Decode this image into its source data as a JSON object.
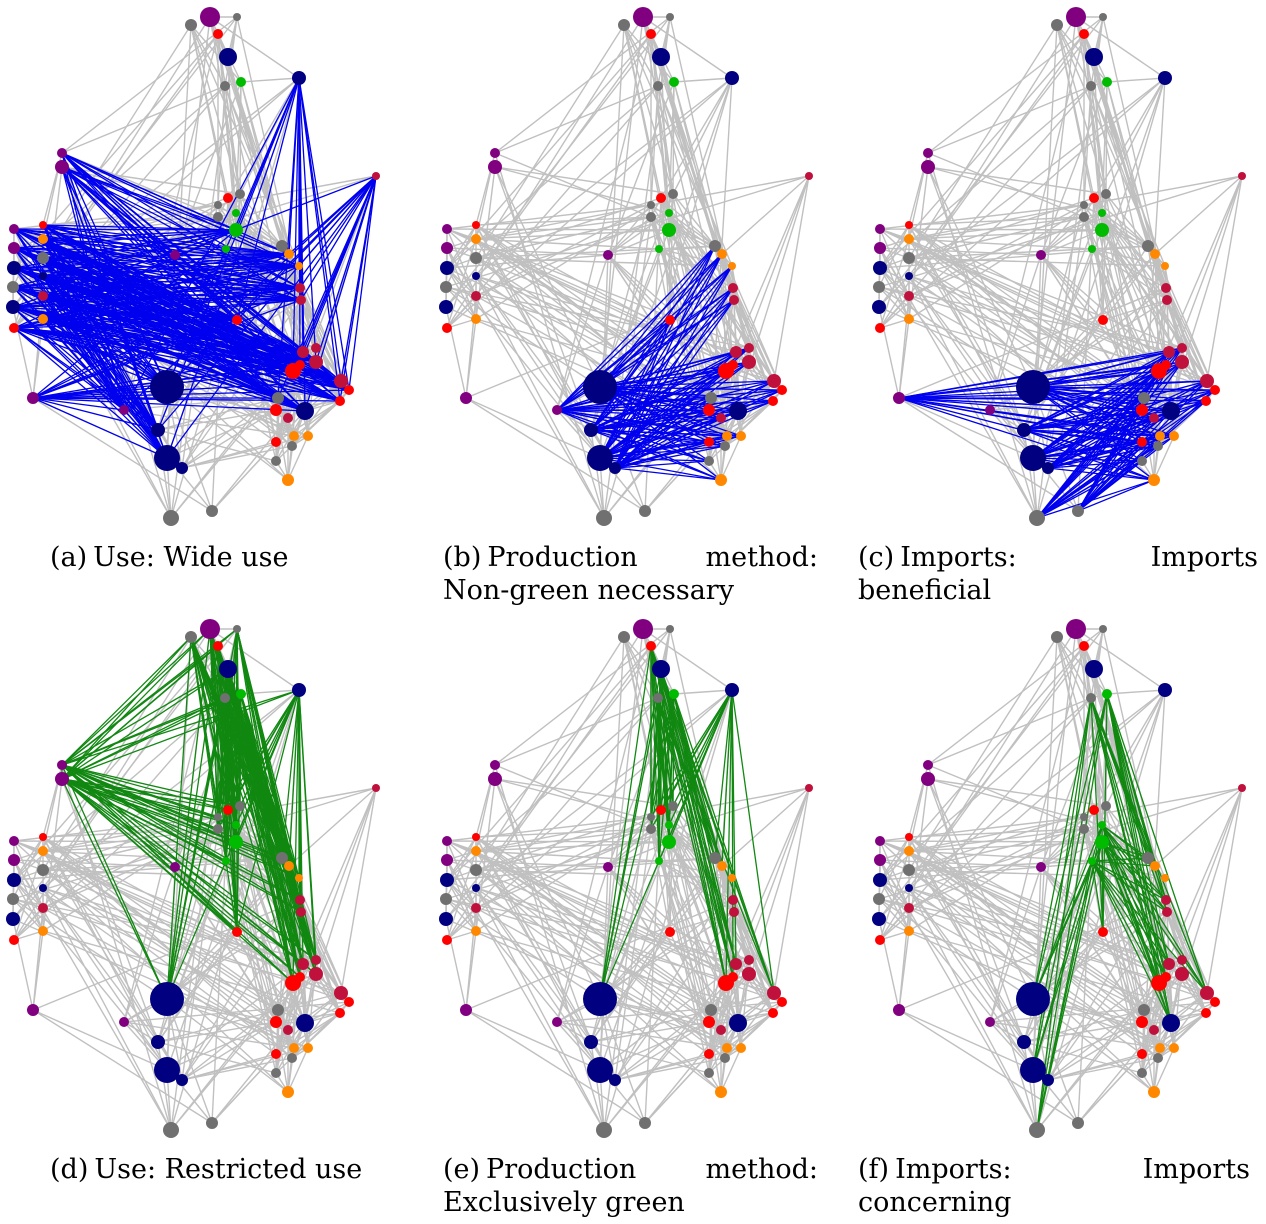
{
  "panels": [
    {
      "label": "(a)",
      "caption": "Use: Wide use",
      "highlight": "#0000ee",
      "hub": "use"
    },
    {
      "label": "(b)",
      "caption": "Production method: Non-green necessary",
      "highlight": "#0000ee",
      "hub": "prod"
    },
    {
      "label": "(c)",
      "caption": "Imports: Imports beneficial",
      "highlight": "#0000ee",
      "hub": "imp"
    },
    {
      "label": "(d)",
      "caption": "Use: Restricted use",
      "highlight": "#118811",
      "hub": "use"
    },
    {
      "label": "(e)",
      "caption": "Production method: Exclusively green",
      "highlight": "#118811",
      "hub": "prod"
    },
    {
      "label": "(f)",
      "caption": "Imports: Imports concerning",
      "highlight": "#118811",
      "hub": "imp"
    }
  ],
  "colors": {
    "edge": "#c0c0c0",
    "purple": "#800080",
    "gray": "#707070",
    "red": "#ff0000",
    "navy": "#000080",
    "green": "#00bb00",
    "orange": "#ff8800",
    "crimson": "#c0103c"
  }
}
